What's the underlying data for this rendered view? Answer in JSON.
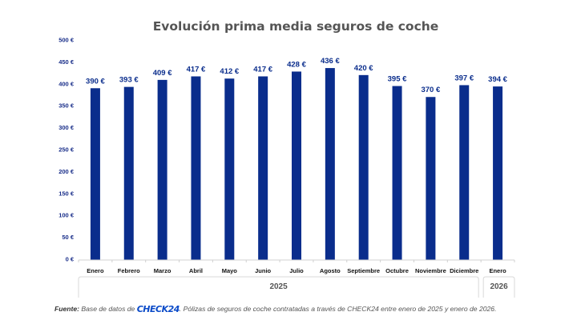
{
  "chart_data": {
    "type": "bar",
    "title": "Evolución prima media seguros de coche",
    "xlabel": "",
    "ylabel": "",
    "ylim": [
      0,
      500
    ],
    "yticks": [
      0,
      50,
      100,
      150,
      200,
      250,
      300,
      350,
      400,
      450,
      500
    ],
    "ytick_suffix": " €",
    "grid": false,
    "legend": "none",
    "bar_color": "#0a2d8c",
    "categories": [
      "Enero",
      "Febrero",
      "Marzo",
      "Abril",
      "Mayo",
      "Junio",
      "Julio",
      "Agosto",
      "Septiembre",
      "Octubre",
      "Noviembre",
      "Diciembre",
      "Enero"
    ],
    "values": [
      390,
      393,
      409,
      417,
      412,
      417,
      428,
      436,
      420,
      395,
      370,
      397,
      394
    ],
    "data_labels": [
      "390 €",
      "393 €",
      "409 €",
      "417 €",
      "412 €",
      "417 €",
      "428 €",
      "436 €",
      "420 €",
      "395 €",
      "370 €",
      "397 €",
      "394 €"
    ],
    "groups": [
      {
        "label": "2025",
        "count": 12
      },
      {
        "label": "2026",
        "count": 1
      }
    ]
  },
  "footer": {
    "source_label": "Fuente:",
    "text_before_logo": " Base de datos de ",
    "logo": "CHECK24",
    "text_after_logo": ". Pólizas de seguros de coche contratadas a través de CHECK24 entre enero de 2025 y enero de 2026."
  }
}
